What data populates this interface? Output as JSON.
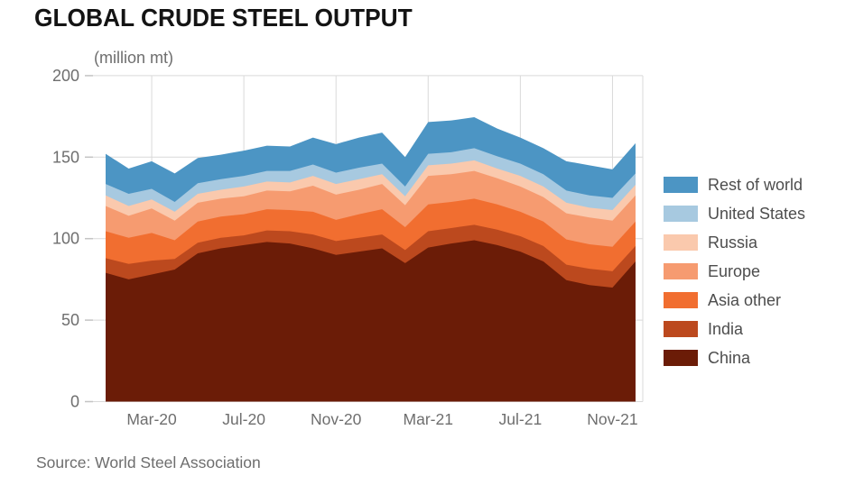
{
  "title": "GLOBAL CRUDE STEEL OUTPUT",
  "subtitle": "(million mt)",
  "source": "Source: World Steel Association",
  "colors": {
    "background": "#ffffff",
    "gridline": "#d9d9d9",
    "tick": "#c4c4c4",
    "axis_text": "#6e6e6e",
    "legend_text": "#4d4d4d",
    "title_text": "#141414"
  },
  "chart_data": {
    "type": "area",
    "stacked": true,
    "title": "GLOBAL CRUDE STEEL OUTPUT",
    "subtitle": "(million mt)",
    "unit": "million mt",
    "xlabel": "",
    "ylabel": "(million mt)",
    "ylim": [
      0,
      200
    ],
    "y_ticks": [
      0,
      50,
      100,
      150,
      200
    ],
    "grid": true,
    "legend_position": "right",
    "x": [
      "Jan-20",
      "Feb-20",
      "Mar-20",
      "Apr-20",
      "May-20",
      "Jun-20",
      "Jul-20",
      "Aug-20",
      "Sep-20",
      "Oct-20",
      "Nov-20",
      "Dec-20",
      "Jan-21",
      "Feb-21",
      "Mar-21",
      "Apr-21",
      "May-21",
      "Jun-21",
      "Jul-21",
      "Aug-21",
      "Sep-21",
      "Oct-21",
      "Nov-21",
      "Dec-21"
    ],
    "x_tick_labels": [
      "Mar-20",
      "Jul-20",
      "Nov-20",
      "Mar-21",
      "Jul-21",
      "Nov-21"
    ],
    "x_tick_indices": [
      2,
      6,
      10,
      14,
      18,
      22
    ],
    "series_bottom_to_top": [
      {
        "name": "China",
        "color": "#6b1c07",
        "values": [
          79,
          75,
          78,
          81,
          91,
          94,
          96,
          98,
          97,
          94,
          90,
          92,
          94,
          85,
          94.5,
          97,
          99,
          96,
          92,
          86,
          74.5,
          71.5,
          70,
          86
        ]
      },
      {
        "name": "India",
        "color": "#bc491e",
        "values": [
          9,
          9.5,
          8.5,
          6.5,
          6.5,
          6.5,
          6,
          7,
          7.5,
          8.5,
          8.5,
          8.5,
          8.5,
          8,
          10,
          9.5,
          9.5,
          9.5,
          9.5,
          9.5,
          9.5,
          10,
          10,
          9.5
        ]
      },
      {
        "name": "Asia other",
        "color": "#f16e30",
        "values": [
          16.5,
          16,
          17,
          11.5,
          13,
          13,
          13,
          13,
          13,
          14,
          13,
          14.5,
          15.5,
          14,
          16.5,
          16,
          16,
          15.5,
          15,
          15,
          15.5,
          15,
          15,
          15
        ]
      },
      {
        "name": "Europe",
        "color": "#f69b70",
        "values": [
          15.5,
          13.5,
          15,
          12,
          11.5,
          11,
          11,
          11.5,
          11.5,
          16,
          15.5,
          15,
          15.5,
          13.5,
          17.5,
          17,
          17,
          16,
          15.5,
          15,
          16,
          16.5,
          16,
          16
        ]
      },
      {
        "name": "Russia",
        "color": "#fac9ad",
        "values": [
          6.5,
          6,
          5.5,
          5.5,
          5.5,
          5.5,
          6,
          5.5,
          5.5,
          6,
          6.5,
          6.5,
          6,
          5.5,
          6.5,
          6.5,
          6.5,
          6,
          6.5,
          6.5,
          6.5,
          6,
          6.5,
          6.5
        ]
      },
      {
        "name": "United States",
        "color": "#a7c9e0",
        "values": [
          7,
          7.5,
          6.5,
          6,
          6.5,
          6.5,
          6.5,
          6.5,
          7,
          7,
          7,
          7,
          6.5,
          6,
          7,
          7,
          7.5,
          7.5,
          7.5,
          7.5,
          7.5,
          7.5,
          7.5,
          7
        ]
      },
      {
        "name": "Rest of world",
        "color": "#4c95c4",
        "values": [
          18.5,
          15.5,
          17,
          17.5,
          15.5,
          15,
          15.5,
          15.5,
          15,
          16.5,
          17.5,
          18.5,
          19,
          18,
          19.5,
          19.5,
          19,
          17,
          16,
          16,
          18,
          18.5,
          17.5,
          18.5
        ]
      }
    ],
    "legend_top_to_bottom": [
      "Rest of world",
      "United States",
      "Russia",
      "Europe",
      "Asia other",
      "India",
      "China"
    ]
  }
}
